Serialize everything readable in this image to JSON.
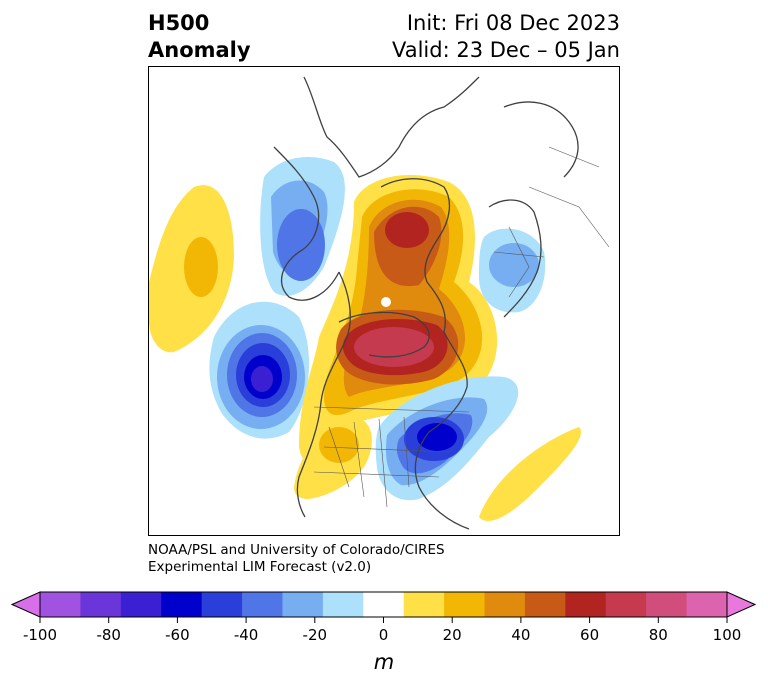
{
  "header": {
    "title_line1": "H500",
    "title_line2": "Anomaly",
    "init_label": "Init: Fri 08 Dec 2023",
    "valid_label": "Valid: 23 Dec – 05 Jan"
  },
  "credit": {
    "line1": "NOAA/PSL and University of Colorado/CIRES",
    "line2": "Experimental LIM Forecast (v2.0)"
  },
  "colorbar": {
    "unit": "m",
    "min": -100,
    "max": 100,
    "step": 10,
    "tick_labels": [
      "-100",
      "-80",
      "-60",
      "-40",
      "-20",
      "0",
      "20",
      "40",
      "60",
      "80",
      "100"
    ],
    "colors": [
      "#d66fe8",
      "#a052e0",
      "#6b36d9",
      "#3a1fd3",
      "#0000cd",
      "#2a3fda",
      "#4f75e6",
      "#77aef2",
      "#ace0fb",
      "#ffffff",
      "#ffe047",
      "#f2b705",
      "#e08a0e",
      "#c85a18",
      "#b2241f",
      "#c53a4e",
      "#d14e7c",
      "#dc64ae",
      "#e878dc"
    ]
  }
}
